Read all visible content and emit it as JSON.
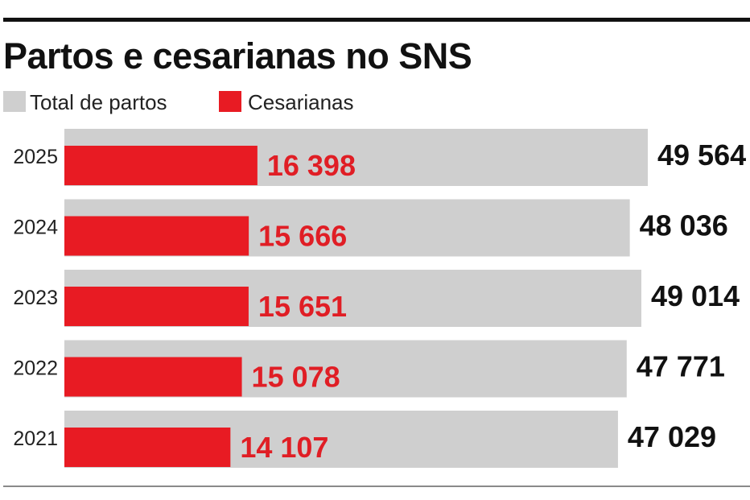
{
  "header": {
    "title": "Partos e cesarianas no SNS"
  },
  "legend": [
    {
      "label": "Total de partos",
      "color": "#cfcfcf"
    },
    {
      "label": "Cesarianas",
      "color": "#e81b23"
    }
  ],
  "colors": {
    "total": "#cfcfcf",
    "cesarianas": "#e81b23",
    "cesarianas_label": "#e01e25",
    "total_label": "#111111",
    "year_label": "#222222"
  },
  "chart_data": {
    "type": "bar",
    "orientation": "horizontal",
    "title": "Partos e cesarianas no SNS",
    "categories": [
      "2025",
      "2024",
      "2023",
      "2022",
      "2021"
    ],
    "series": [
      {
        "name": "Total de partos",
        "values": [
          49564,
          48036,
          49014,
          47771,
          47029
        ],
        "labels": [
          "49 564",
          "48 036",
          "49 014",
          "47 771",
          "47 029"
        ]
      },
      {
        "name": "Cesarianas",
        "values": [
          16398,
          15666,
          15651,
          15078,
          14107
        ],
        "labels": [
          "16 398",
          "15 666",
          "15 651",
          "15 078",
          "14 107"
        ]
      }
    ],
    "xlim": [
      0,
      49564
    ],
    "grid": false,
    "legend_position": "top-left"
  }
}
